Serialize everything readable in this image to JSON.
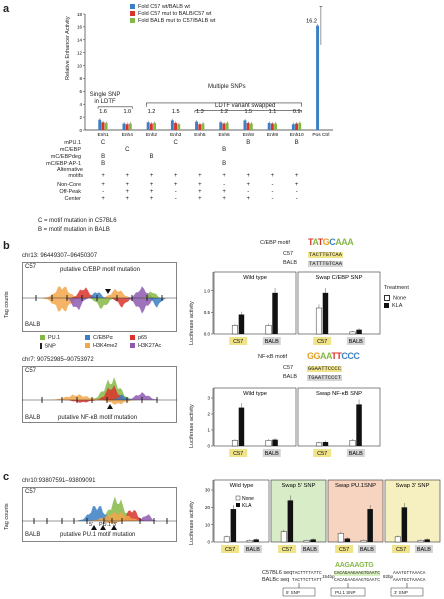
{
  "panel_a": {
    "letter": "a",
    "legend": [
      "Fold C57 wt/BALB wt",
      "Fold C57 mut to BALB/C57 wt",
      "Fold BALB mut to C57/BALB wt"
    ],
    "legend_colors": [
      "#3b7fc4",
      "#d9342b",
      "#86b847"
    ],
    "ylabel": "Relative Enhancer Activity",
    "yticks": [
      "0",
      "2",
      "4",
      "6",
      "8",
      "10",
      "12",
      "14",
      "16",
      "18"
    ],
    "categories": [
      "Enh1",
      "Enh4",
      "Enh2",
      "Enh3",
      "Enh5",
      "Enh6",
      "Enh8",
      "Enh9",
      "Enh10",
      "Pos Ctrl"
    ],
    "fold_labels": [
      "1.6",
      "1.0",
      "1.2",
      "1.5",
      "1.3",
      "1.2",
      "1.5",
      "1.1",
      "0.9",
      "16.2"
    ],
    "bracket_single": "Single SNP\nin LDTF",
    "bracket_multiple": "Multiple SNPs",
    "bracket_swapped": "LDTF variant swapped",
    "row_labels": [
      "mPU.1",
      "mC/EBP",
      "mC/EBPdeg",
      "mC/EBP:AP-1",
      "Alternative\nmotifs",
      "Non-Core",
      "Off-Peak",
      "Center"
    ],
    "row_values": [
      [
        "C",
        "",
        "",
        "C",
        "",
        "",
        "B",
        "",
        "B"
      ],
      [
        "",
        "C",
        "",
        "",
        "",
        "B",
        "",
        "",
        ""
      ],
      [
        "B",
        "",
        "B",
        "",
        "",
        "",
        "",
        "",
        ""
      ],
      [
        "B",
        "",
        "",
        "",
        "",
        "B",
        "",
        "",
        ""
      ],
      [
        "+",
        "+",
        "+",
        "+",
        "+",
        "+",
        "+",
        "+",
        "+"
      ],
      [
        "+",
        "+",
        "+",
        "+",
        "+",
        "-",
        "+",
        "-",
        "+"
      ],
      [
        "-",
        "+",
        "+",
        "-",
        "+",
        "+",
        "-",
        "-",
        "-"
      ],
      [
        "+",
        "+",
        "+",
        "-",
        "+",
        "+",
        "+",
        "-",
        "-"
      ]
    ],
    "footnotes": [
      "C = motif mutation in C57BL6",
      "B = motif mutation in BALB"
    ],
    "chart_data": {
      "type": "bar",
      "categories": [
        "Enh1",
        "Enh4",
        "Enh2",
        "Enh3",
        "Enh5",
        "Enh6",
        "Enh8",
        "Enh9",
        "Enh10",
        "Pos Ctrl"
      ],
      "ylim": [
        0,
        18
      ],
      "series": [
        {
          "name": "Fold C57 wt/BALB wt",
          "values": [
            1.6,
            1.0,
            1.2,
            1.5,
            1.3,
            1.2,
            1.5,
            1.1,
            0.9,
            16.2
          ]
        },
        {
          "name": "Fold C57 mut to BALB/C57 wt",
          "values": [
            1.2,
            0.9,
            1.0,
            1.1,
            0.9,
            1.0,
            1.1,
            1.0,
            1.0,
            0
          ]
        },
        {
          "name": "Fold BALB mut to C57/BALB wt",
          "values": [
            1.1,
            1.0,
            1.1,
            0.9,
            1.0,
            1.1,
            1.0,
            1.0,
            1.1,
            0
          ]
        }
      ]
    }
  },
  "panel_b": {
    "letter": "b",
    "track1": {
      "coords": "chr13: 96449307–96450307",
      "top": "C57",
      "bottom": "BALB",
      "note": "putative C/EBP motif mutation"
    },
    "track2": {
      "coords": "chr7: 90752985–90753972",
      "top": "C57",
      "bottom": "BALB",
      "note": "putative NF-κB motif mutation"
    },
    "ylabel": "Tag counts",
    "legend": [
      {
        "label": "PU.1",
        "color": "#86b847"
      },
      {
        "label": "C/EBPα",
        "color": "#3b7fc4"
      },
      {
        "label": "p65",
        "color": "#d9342b"
      },
      {
        "label": "SNP",
        "color": "#222222"
      },
      {
        "label": "H3K4me2",
        "color": "#f2a64a"
      },
      {
        "label": "H3K27Ac",
        "color": "#8e5bb0"
      }
    ],
    "motif1": {
      "title": "C/EBP motif",
      "c57": "TACTTGTCAA",
      "balb": "TATTTGTCAA",
      "c57_label": "C57",
      "balb_label": "BALB"
    },
    "motif2": {
      "title": "NF-κB motif",
      "c57": "GGAATTCCCC",
      "balb": "TGAATTCCCT",
      "c57_label": "C57",
      "balb_label": "BALB"
    },
    "chart1": {
      "left_title": "Wild type",
      "right_title": "Swap C/EBP SNP"
    },
    "chart2": {
      "left_title": "Wild type",
      "right_title": "Swap NF-κB SNP"
    },
    "ylabel_lux": "Luciferase activity",
    "treatment_title": "Treatment",
    "treatment": [
      "None",
      "KLA"
    ],
    "strain_labels": [
      "C57",
      "BALB",
      "C57",
      "BALB"
    ],
    "chart_data": [
      {
        "type": "bar",
        "title": "Wild type / Swap C/EBP SNP",
        "categories": [
          "C57",
          "BALB",
          "C57",
          "BALB"
        ],
        "ylim": [
          0,
          1.2
        ],
        "series": [
          {
            "name": "None",
            "values": [
              0.2,
              0.2,
              0.6,
              0.05
            ]
          },
          {
            "name": "KLA",
            "values": [
              0.45,
              0.95,
              0.95,
              0.1
            ]
          }
        ]
      },
      {
        "type": "bar",
        "title": "Wild type / Swap NF-κB SNP",
        "categories": [
          "C57",
          "BALB",
          "C57",
          "BALB"
        ],
        "ylim": [
          0,
          3
        ],
        "series": [
          {
            "name": "None",
            "values": [
              0.35,
              0.35,
              0.2,
              0.35
            ]
          },
          {
            "name": "KLA",
            "values": [
              2.4,
              0.4,
              0.25,
              2.6
            ]
          }
        ]
      }
    ]
  },
  "panel_c": {
    "letter": "c",
    "coords": "chr10:93807591–93809091",
    "top": "C57",
    "bottom": "BALB",
    "note": "putative PU.1 motif mutation",
    "ylabel": "Tag counts",
    "snp_labels": [
      "5′",
      "PU.1",
      "3′"
    ],
    "chart_titles": [
      "Wild type",
      "Swap 5′ SNP",
      "Swap PU.1SNP",
      "Swap 3′ SNP"
    ],
    "legend": [
      "None",
      "KLA"
    ],
    "ylabel_lux": "Luciferase activity",
    "yticks": [
      "0",
      "10",
      "20",
      "30"
    ],
    "strain_labels": [
      "C57",
      "BALB",
      "C57",
      "BALB",
      "C57",
      "BALB",
      "C57",
      "BALB"
    ],
    "seq_c57_label": "C57BL6 seq",
    "seq_balb_label": "BALBc seq",
    "seq_c57": "TACTTTTATTC",
    "seq_balb": "TACTTCTTATT",
    "gap1": "154bp",
    "gap2": "82bp",
    "pu1_c57": "CACAGAAGAAGTGAATC",
    "pu1_balb": "CACAGAAGAAGTGAATC",
    "seq3_c57": "AAATGTTAAACA",
    "seq3_balb": "AAATGCTAAACA",
    "pu1_logo": "AAGAAGTG",
    "snp_names": [
      "5′ SNP",
      "PU.1 SNP",
      "3′ SNP"
    ],
    "chart_data": {
      "type": "bar",
      "categories": [
        "WT C57",
        "WT BALB",
        "5' C57",
        "5' BALB",
        "PU.1 C57",
        "PU.1 BALB",
        "3' C57",
        "3' BALB"
      ],
      "ylim": [
        0,
        30
      ],
      "series": [
        {
          "name": "None",
          "values": [
            3,
            1,
            6,
            1,
            5,
            1,
            3,
            1
          ]
        },
        {
          "name": "KLA",
          "values": [
            19,
            1.5,
            24,
            1.5,
            2,
            19,
            20,
            1.5
          ]
        }
      ]
    }
  }
}
